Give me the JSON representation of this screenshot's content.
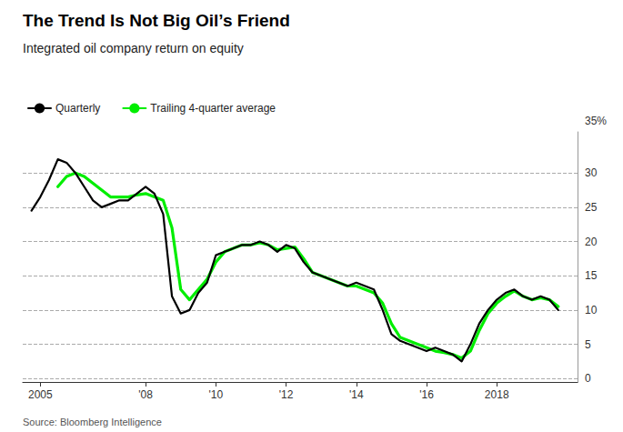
{
  "chart_data": {
    "type": "line",
    "title": "The Trend Is Not Big Oil’s Friend",
    "subtitle": "Integrated oil company return on equity",
    "annotations": [
      "35%"
    ],
    "source": "Source: Bloomberg Intelligence",
    "legend": "upper left",
    "grid": true,
    "xlim": [
      2004.5,
      2020.3
    ],
    "xticks": [
      2005,
      {
        "value": 2008,
        "label": "'08"
      },
      {
        "value": 2010,
        "label": "'10"
      },
      {
        "value": 2012,
        "label": "'12"
      },
      {
        "value": 2014,
        "label": "'14"
      },
      {
        "value": 2016,
        "label": "'16"
      },
      2018
    ],
    "ylim": [
      -0.5,
      36
    ],
    "yticks": [
      0,
      5,
      10,
      15,
      20,
      25,
      30
    ],
    "series": [
      {
        "name": "Quarterly",
        "color": "#000000",
        "x": [
          2004.75,
          2005.0,
          2005.25,
          2005.5,
          2005.75,
          2006.0,
          2006.25,
          2006.5,
          2006.75,
          2007.0,
          2007.25,
          2007.5,
          2007.75,
          2008.0,
          2008.25,
          2008.5,
          2008.75,
          2009.0,
          2009.25,
          2009.5,
          2009.75,
          2010.0,
          2010.25,
          2010.5,
          2010.75,
          2011.0,
          2011.25,
          2011.5,
          2011.75,
          2012.0,
          2012.25,
          2012.5,
          2012.75,
          2013.0,
          2013.25,
          2013.5,
          2013.75,
          2014.0,
          2014.25,
          2014.5,
          2014.75,
          2015.0,
          2015.25,
          2015.5,
          2015.75,
          2016.0,
          2016.25,
          2016.5,
          2016.75,
          2017.0,
          2017.25,
          2017.5,
          2017.75,
          2018.0,
          2018.25,
          2018.5,
          2018.75,
          2019.0,
          2019.25,
          2019.5,
          2019.75
        ],
        "values": [
          24.5,
          26.5,
          29.0,
          32.0,
          31.5,
          30.0,
          28.0,
          26.0,
          25.0,
          25.5,
          26.0,
          26.0,
          27.0,
          28.0,
          27.0,
          24.0,
          12.0,
          9.5,
          10.0,
          12.5,
          14.0,
          18.0,
          18.5,
          19.0,
          19.5,
          19.5,
          20.0,
          19.5,
          18.5,
          19.5,
          19.0,
          17.0,
          15.5,
          15.0,
          14.5,
          14.0,
          13.5,
          14.0,
          13.5,
          13.0,
          10.0,
          6.5,
          5.5,
          5.0,
          4.5,
          4.0,
          4.5,
          4.0,
          3.5,
          2.5,
          5.0,
          8.0,
          10.0,
          11.5,
          12.5,
          13.0,
          12.0,
          11.5,
          12.0,
          11.5,
          10.0
        ]
      },
      {
        "name": "Trailing 4-quarter average",
        "color": "#00ee00",
        "x": [
          2005.5,
          2005.75,
          2006.0,
          2006.25,
          2006.5,
          2006.75,
          2007.0,
          2007.25,
          2007.5,
          2007.75,
          2008.0,
          2008.25,
          2008.5,
          2008.75,
          2009.0,
          2009.25,
          2009.5,
          2009.75,
          2010.0,
          2010.25,
          2010.5,
          2010.75,
          2011.0,
          2011.25,
          2011.5,
          2011.75,
          2012.0,
          2012.25,
          2012.5,
          2012.75,
          2013.0,
          2013.25,
          2013.5,
          2013.75,
          2014.0,
          2014.25,
          2014.5,
          2014.75,
          2015.0,
          2015.25,
          2015.5,
          2015.75,
          2016.0,
          2016.25,
          2016.5,
          2016.75,
          2017.0,
          2017.25,
          2017.5,
          2017.75,
          2018.0,
          2018.25,
          2018.5,
          2018.75,
          2019.0,
          2019.25,
          2019.5,
          2019.75
        ],
        "values": [
          28.0,
          29.5,
          30.0,
          29.5,
          28.5,
          27.5,
          26.5,
          26.5,
          26.5,
          26.8,
          27.0,
          26.5,
          26.0,
          22.0,
          13.0,
          11.5,
          13.0,
          14.5,
          17.0,
          18.5,
          19.0,
          19.5,
          19.5,
          19.8,
          19.5,
          18.8,
          19.0,
          19.2,
          17.5,
          15.5,
          15.0,
          14.5,
          14.0,
          13.5,
          13.5,
          13.0,
          12.5,
          11.0,
          8.0,
          6.0,
          5.5,
          5.0,
          4.5,
          4.0,
          3.8,
          3.5,
          3.0,
          4.0,
          7.0,
          9.5,
          11.0,
          12.0,
          12.8,
          12.0,
          11.5,
          11.8,
          11.5,
          10.5
        ]
      }
    ]
  }
}
